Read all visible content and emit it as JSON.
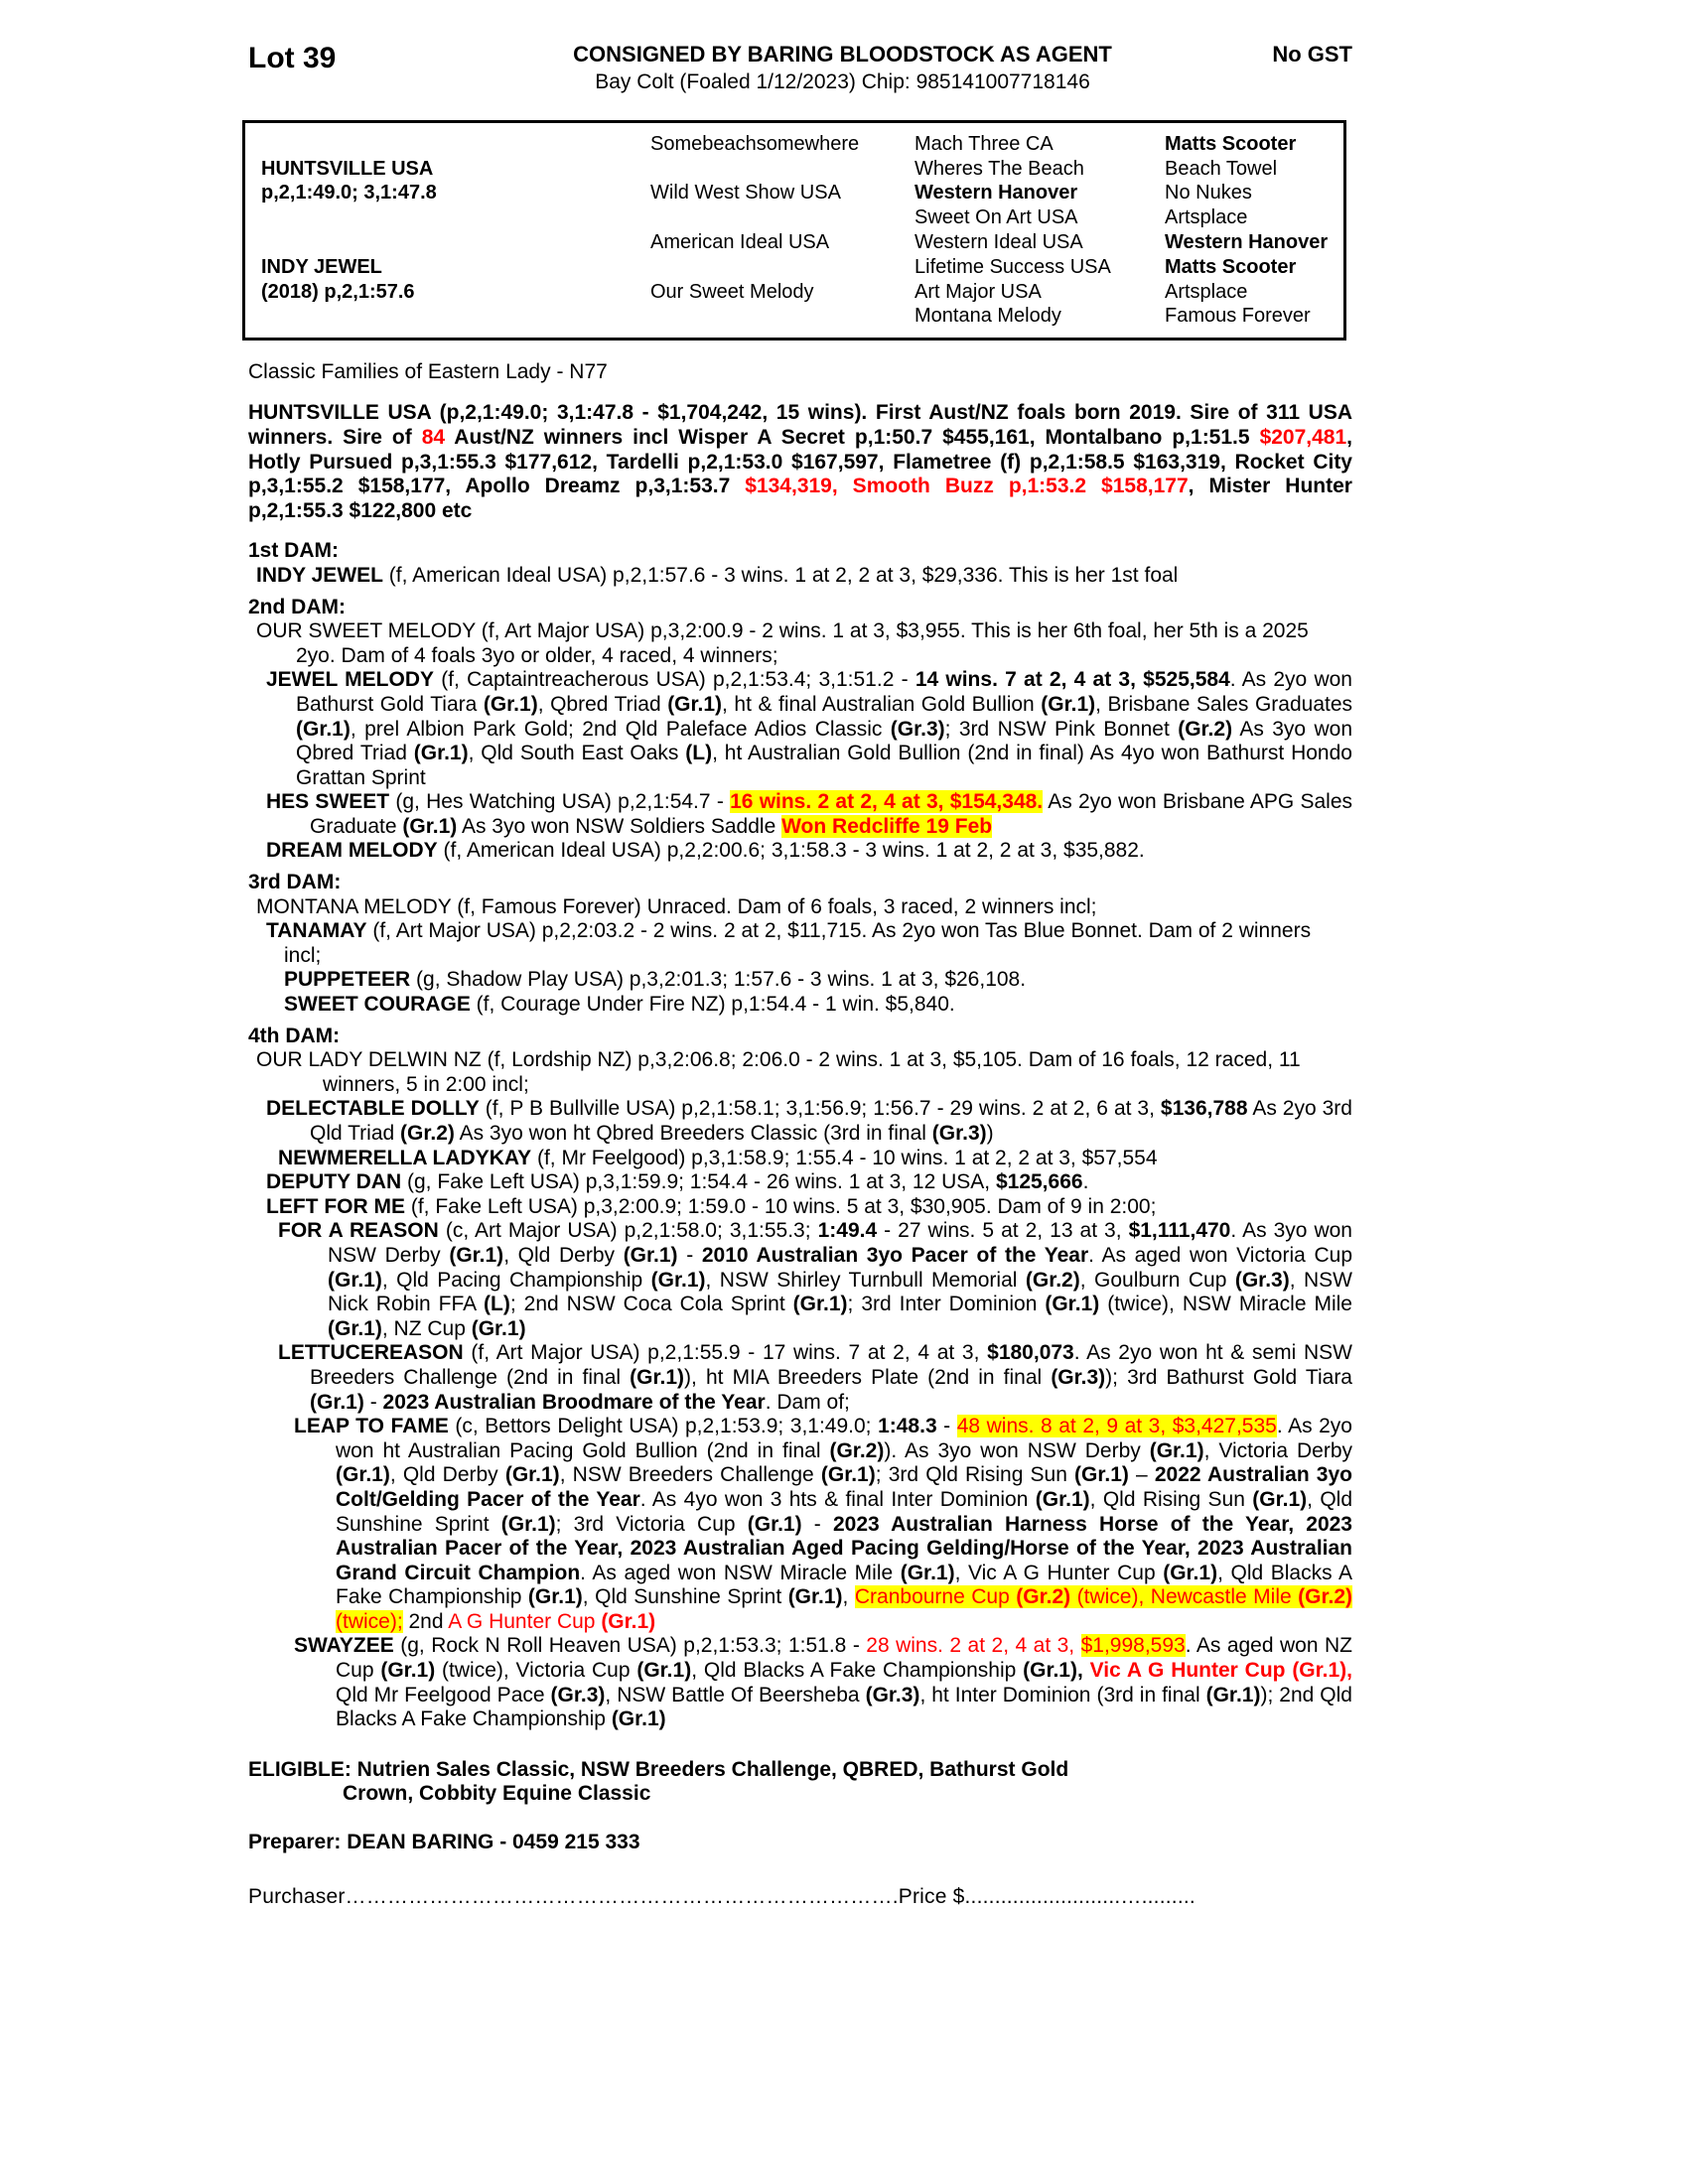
{
  "header": {
    "lot": "Lot 39",
    "consignor": "CONSIGNED BY BARING BLOODSTOCK AS AGENT",
    "gst": "No GST",
    "foaling": "Bay Colt (Foaled 1/12/2023) Chip: 985141007718146"
  },
  "pedigree": {
    "sire": {
      "name": "HUNTSVILLE USA",
      "record": "p,2,1:49.0; 3,1:47.8"
    },
    "dam": {
      "name": "INDY JEWEL",
      "record": "(2018) p,2,1:57.6"
    },
    "gen2": [
      "Somebeachsomewhere",
      "Wild West Show USA",
      "American Ideal USA",
      "Our Sweet Melody"
    ],
    "gen3": [
      {
        "t": "Mach Three CA",
        "b": 0
      },
      {
        "t": "Wheres The Beach",
        "b": 0
      },
      {
        "t": "Western Hanover",
        "b": 1
      },
      {
        "t": "Sweet On Art USA",
        "b": 0
      },
      {
        "t": "Western Ideal USA",
        "b": 0
      },
      {
        "t": "Lifetime Success USA",
        "b": 0
      },
      {
        "t": "Art Major USA",
        "b": 0
      },
      {
        "t": "Montana Melody",
        "b": 0
      }
    ],
    "gen4": [
      {
        "t": "Matts Scooter",
        "b": 1
      },
      {
        "t": "Beach Towel",
        "b": 0
      },
      {
        "t": "No Nukes",
        "b": 0
      },
      {
        "t": "Artsplace",
        "b": 0
      },
      {
        "t": "Western Hanover",
        "b": 1
      },
      {
        "t": "Matts Scooter",
        "b": 1
      },
      {
        "t": "Artsplace",
        "b": 0
      },
      {
        "t": "Famous Forever",
        "b": 0
      }
    ]
  },
  "family_line": "Classic Families of Eastern Lady - N77",
  "colors": {
    "accent_red": "#ff0000",
    "highlight_yellow": "#ffff00"
  },
  "body": [
    {
      "n": "huntsville-summary",
      "cls": "sire-para",
      "f": 0,
      "w": 0,
      "j": 1,
      "sp": [
        [
          "b",
          "HUNTSVILLE USA (p,2,1:49.0; 3,1:47.8 - $1,704,242, 15 wins).  First Aust/NZ foals born 2019. Sire of 311 USA winners. Sire of "
        ],
        [
          "rb",
          "84"
        ],
        [
          "b",
          " Aust/NZ winners incl Wisper A Secret p,1:50.7 $455,161, Montalbano p,1:51.5 "
        ],
        [
          "rb",
          "$207,481"
        ],
        [
          "b",
          ", Hotly Pursued p,3,1:55.3 $177,612, Tardelli p,2,1:53.0 $167,597, Flametree (f) p,2,1:58.5 $163,319, Rocket City p,3,1:55.2 $158,177, Apollo Dreamz p,3,1:53.7 "
        ],
        [
          "rb",
          "$134,319, Smooth Buzz p,1:53.2 $158,177"
        ],
        [
          "b",
          ", Mister Hunter p,2,1:55.3 $122,800 etc"
        ]
      ]
    },
    {
      "n": "first-dam-heading",
      "cls": "heading",
      "f": 0,
      "w": 0,
      "sp": [
        [
          "b",
          "1st DAM:"
        ]
      ]
    },
    {
      "n": "indy-jewel-para",
      "f": 8,
      "w": 40,
      "sp": [
        [
          "b",
          "INDY JEWEL"
        ],
        [
          "n",
          " (f, American Ideal USA) p,2,1:57.6 - 3 wins. 1 at 2, 2 at 3, $29,336. This is her 1st foal"
        ]
      ]
    },
    {
      "n": "second-dam-heading",
      "cls": "heading",
      "f": 0,
      "w": 0,
      "sp": [
        [
          "b",
          "2nd DAM:"
        ]
      ]
    },
    {
      "n": "our-sweet-melody-para",
      "f": 8,
      "w": 48,
      "sp": [
        [
          "n",
          "OUR SWEET MELODY (f, Art Major USA) p,3,2:00.9 - 2 wins. 1 at 3, $3,955. This is her 6th foal, her 5th is a 2025 2yo. Dam of 4 foals 3yo or older, 4 raced, 4 winners;"
        ]
      ]
    },
    {
      "n": "jewel-melody-para",
      "f": 18,
      "w": 48,
      "j": 1,
      "sp": [
        [
          "b",
          "JEWEL MELODY"
        ],
        [
          "n",
          " (f, Captaintreacherous USA) p,2,1:53.4; 3,1:51.2 - "
        ],
        [
          "b",
          "14 wins. 7 at 2, 4 at 3, $525,584"
        ],
        [
          "n",
          ". As 2yo won Bathurst Gold Tiara "
        ],
        [
          "b",
          "(Gr.1)"
        ],
        [
          "n",
          ", Qbred Triad "
        ],
        [
          "b",
          "(Gr.1)"
        ],
        [
          "n",
          ", ht & final Australian Gold Bullion "
        ],
        [
          "b",
          "(Gr.1)"
        ],
        [
          "n",
          ", Brisbane Sales Graduates "
        ],
        [
          "b",
          "(Gr.1)"
        ],
        [
          "n",
          ", prel Albion Park Gold; 2nd Qld Paleface Adios Classic "
        ],
        [
          "b",
          "(Gr.3)"
        ],
        [
          "n",
          "; 3rd NSW Pink Bonnet "
        ],
        [
          "b",
          "(Gr.2)"
        ],
        [
          "n",
          " As 3yo won Qbred Triad "
        ],
        [
          "b",
          "(Gr.1)"
        ],
        [
          "n",
          ", Qld South East Oaks "
        ],
        [
          "b",
          "(L)"
        ],
        [
          "n",
          ", ht Australian Gold Bullion (2nd in final) As 4yo won Bathurst Hondo Grattan Sprint"
        ]
      ]
    },
    {
      "n": "hes-sweet-para",
      "f": 18,
      "w": 62,
      "j": 1,
      "sp": [
        [
          "b",
          "HES SWEET"
        ],
        [
          "n",
          " (g, Hes Watching USA) p,2,1:54.7 - "
        ],
        [
          "yrb",
          "16 wins. 2 at 2, 4 at 3, $154,348."
        ],
        [
          "n",
          " As 2yo won Brisbane APG Sales Graduate "
        ],
        [
          "b",
          "(Gr.1)"
        ],
        [
          "n",
          " As 3yo won NSW Soldiers Saddle "
        ],
        [
          "yrb",
          "Won Redcliffe 19 Feb"
        ]
      ]
    },
    {
      "n": "dream-melody-para",
      "f": 18,
      "w": 48,
      "sp": [
        [
          "b",
          "DREAM MELODY"
        ],
        [
          "n",
          " (f, American Ideal USA) p,2,2:00.6; 3,1:58.3 - 3 wins. 1 at 2, 2 at 3, $35,882."
        ]
      ]
    },
    {
      "n": "third-dam-heading",
      "cls": "heading",
      "f": 0,
      "w": 0,
      "sp": [
        [
          "b",
          "3rd DAM:"
        ]
      ]
    },
    {
      "n": "montana-melody-para",
      "f": 8,
      "w": 40,
      "sp": [
        [
          "n",
          "MONTANA MELODY (f, Famous Forever) Unraced. Dam of 6 foals, 3 raced, 2 winners incl;"
        ]
      ]
    },
    {
      "n": "tanamay-para",
      "f": 18,
      "w": 36,
      "sp": [
        [
          "b",
          "TANAMAY"
        ],
        [
          "n",
          " (f, Art Major USA) p,2,2:03.2 - 2 wins. 2 at 2, $11,715. As 2yo won Tas Blue Bonnet. Dam of 2 winners incl;"
        ]
      ]
    },
    {
      "n": "puppeteer-para",
      "f": 36,
      "w": 60,
      "sp": [
        [
          "b",
          "PUPPETEER"
        ],
        [
          "n",
          " (g, Shadow Play USA) p,3,2:01.3; 1:57.6 - 3 wins. 1 at 3, $26,108."
        ]
      ]
    },
    {
      "n": "sweet-courage-para",
      "f": 36,
      "w": 60,
      "sp": [
        [
          "b",
          "SWEET COURAGE"
        ],
        [
          "n",
          " (f, Courage Under Fire NZ) p,1:54.4 - 1 win. $5,840."
        ]
      ]
    },
    {
      "n": "fourth-dam-heading",
      "cls": "heading",
      "f": 0,
      "w": 0,
      "sp": [
        [
          "b",
          "4th DAM:"
        ]
      ]
    },
    {
      "n": "our-lady-delwin-para",
      "f": 8,
      "w": 75,
      "sp": [
        [
          "n",
          "OUR LADY DELWIN NZ (f, Lordship NZ) p,3,2:06.8; 2:06.0 - 2 wins. 1 at 3, $5,105. Dam of 16 foals, 12 raced, 11 winners, 5 in 2:00 incl;"
        ]
      ]
    },
    {
      "n": "delectable-dolly-para",
      "f": 18,
      "w": 62,
      "j": 1,
      "sp": [
        [
          "b",
          "DELECTABLE DOLLY"
        ],
        [
          "n",
          " (f, P B Bullville USA) p,2,1:58.1; 3,1:56.9; 1:56.7 - 29 wins. 2 at 2, 6 at 3, "
        ],
        [
          "b",
          "$136,788"
        ],
        [
          "n",
          " As 2yo 3rd Qld Triad "
        ],
        [
          "b",
          "(Gr.2)"
        ],
        [
          "n",
          " As 3yo won ht Qbred Breeders Classic (3rd in final "
        ],
        [
          "b",
          "(Gr.3)"
        ],
        [
          "n",
          ")"
        ]
      ]
    },
    {
      "n": "newmerella-ladykay-para",
      "f": 30,
      "w": 62,
      "sp": [
        [
          "b",
          "NEWMERELLA LADYKAY"
        ],
        [
          "n",
          " (f, Mr Feelgood) p,3,1:58.9; 1:55.4 - 10 wins. 1 at 2, 2 at 3, $57,554"
        ]
      ]
    },
    {
      "n": "deputy-dan-para",
      "f": 18,
      "w": 48,
      "sp": [
        [
          "b",
          "DEPUTY DAN"
        ],
        [
          "n",
          " (g, Fake Left USA) p,3,1:59.9; 1:54.4 - 26 wins. 1 at 3, 12 USA, "
        ],
        [
          "b",
          "$125,666"
        ],
        [
          "n",
          "."
        ]
      ]
    },
    {
      "n": "left-for-me-para",
      "f": 18,
      "w": 48,
      "sp": [
        [
          "b",
          "LEFT FOR ME"
        ],
        [
          "n",
          " (f, Fake Left USA) p,3,2:00.9; 1:59.0 - 10 wins. 5 at 3, $30,905. Dam of 9 in 2:00;"
        ]
      ]
    },
    {
      "n": "for-a-reason-para",
      "f": 30,
      "w": 80,
      "j": 1,
      "sp": [
        [
          "b",
          "FOR A REASON"
        ],
        [
          "n",
          " (c, Art Major USA) p,2,1:58.0; 3,1:55.3; "
        ],
        [
          "b",
          "1:49.4"
        ],
        [
          "n",
          " - 27 wins. 5 at 2, 13 at 3, "
        ],
        [
          "b",
          "$1,111,470"
        ],
        [
          "n",
          ". As 3yo won NSW Derby "
        ],
        [
          "b",
          "(Gr.1)"
        ],
        [
          "n",
          ", Qld Derby "
        ],
        [
          "b",
          "(Gr.1)"
        ],
        [
          "n",
          " - "
        ],
        [
          "b",
          "2010 Australian 3yo Pacer of the Year"
        ],
        [
          "n",
          ". As aged won Victoria Cup "
        ],
        [
          "b",
          "(Gr.1)"
        ],
        [
          "n",
          ", Qld Pacing Championship "
        ],
        [
          "b",
          "(Gr.1)"
        ],
        [
          "n",
          ", NSW Shirley Turnbull Memorial "
        ],
        [
          "b",
          "(Gr.2)"
        ],
        [
          "n",
          ", Goulburn Cup "
        ],
        [
          "b",
          "(Gr.3)"
        ],
        [
          "n",
          ", NSW Nick Robin FFA "
        ],
        [
          "b",
          "(L)"
        ],
        [
          "n",
          "; 2nd NSW Coca Cola Sprint "
        ],
        [
          "b",
          "(Gr.1)"
        ],
        [
          "n",
          "; 3rd Inter Dominion "
        ],
        [
          "b",
          "(Gr.1)"
        ],
        [
          "n",
          " (twice), NSW Miracle Mile "
        ],
        [
          "b",
          "(Gr.1)"
        ],
        [
          "n",
          ", NZ Cup "
        ],
        [
          "b",
          "(Gr.1)"
        ]
      ]
    },
    {
      "n": "lettucereason-para",
      "f": 30,
      "w": 62,
      "j": 1,
      "sp": [
        [
          "b",
          "LETTUCEREASON"
        ],
        [
          "n",
          " (f, Art Major USA) p,2,1:55.9 - 17 wins. 7 at 2, 4 at 3, "
        ],
        [
          "b",
          "$180,073"
        ],
        [
          "n",
          ". As 2yo won ht & semi NSW Breeders Challenge (2nd in final "
        ],
        [
          "b",
          "(Gr.1)"
        ],
        [
          "n",
          "), ht MIA Breeders Plate (2nd in final "
        ],
        [
          "b",
          "(Gr.3)"
        ],
        [
          "n",
          "); 3rd Bathurst Gold Tiara "
        ],
        [
          "b",
          "(Gr.1)"
        ],
        [
          "n",
          " - "
        ],
        [
          "b",
          "2023 Australian Broodmare of the Year"
        ],
        [
          "n",
          ". Dam of;"
        ]
      ]
    },
    {
      "n": "leap-to-fame-para",
      "f": 46,
      "w": 88,
      "j": 1,
      "sp": [
        [
          "b",
          "LEAP TO FAME"
        ],
        [
          "n",
          " (c, Bettors Delight USA) p,2,1:53.9; 3,1:49.0; "
        ],
        [
          "b",
          "1:48.3"
        ],
        [
          "n",
          " - "
        ],
        [
          "yr",
          "48 wins. 8 at 2, 9 at 3, $3,427,535"
        ],
        [
          "n",
          ". As 2yo won ht Australian Pacing Gold Bullion (2nd in final "
        ],
        [
          "b",
          "(Gr.2)"
        ],
        [
          "n",
          "). As 3yo won NSW Derby "
        ],
        [
          "b",
          "(Gr.1)"
        ],
        [
          "n",
          ", Victoria Derby "
        ],
        [
          "b",
          "(Gr.1)"
        ],
        [
          "n",
          ", Qld Derby "
        ],
        [
          "b",
          "(Gr.1)"
        ],
        [
          "n",
          ", NSW Breeders Challenge "
        ],
        [
          "b",
          "(Gr.1)"
        ],
        [
          "n",
          "; 3rd Qld Rising Sun "
        ],
        [
          "b",
          "(Gr.1)"
        ],
        [
          "n",
          " – "
        ],
        [
          "b",
          "2022 Australian 3yo Colt/Gelding Pacer of the Year"
        ],
        [
          "n",
          ". As 4yo won 3 hts & final Inter Dominion "
        ],
        [
          "b",
          "(Gr.1)"
        ],
        [
          "n",
          ", Qld Rising Sun "
        ],
        [
          "b",
          "(Gr.1)"
        ],
        [
          "n",
          ", Qld Sunshine Sprint "
        ],
        [
          "b",
          "(Gr.1)"
        ],
        [
          "n",
          "; 3rd Victoria Cup "
        ],
        [
          "b",
          "(Gr.1)"
        ],
        [
          "n",
          " - "
        ],
        [
          "b",
          "2023 Australian Harness Horse of the Year, 2023 Australian Pacer of the Year, 2023 Australian Aged Pacing Gelding/Horse of the Year, 2023 Australian Grand Circuit Champion"
        ],
        [
          "n",
          ". As aged won NSW Miracle Mile "
        ],
        [
          "b",
          "(Gr.1)"
        ],
        [
          "n",
          ", Vic A G Hunter Cup "
        ],
        [
          "b",
          "(Gr.1)"
        ],
        [
          "n",
          ", Qld Blacks A Fake Championship "
        ],
        [
          "b",
          "(Gr.1)"
        ],
        [
          "n",
          ", Qld Sunshine Sprint "
        ],
        [
          "b",
          "(Gr.1)"
        ],
        [
          "n",
          ", "
        ],
        [
          "yr",
          "Cranbourne Cup "
        ],
        [
          "yrb",
          "(Gr.2)"
        ],
        [
          "yr",
          " (twice), Newcastle Mile "
        ],
        [
          "yrb",
          "(Gr.2)"
        ],
        [
          "yr",
          " (twice);"
        ],
        [
          "n",
          " 2nd "
        ],
        [
          "r",
          "A G Hunter Cup "
        ],
        [
          "rb",
          "(Gr.1)"
        ]
      ]
    },
    {
      "n": "swayzee-para",
      "f": 46,
      "w": 88,
      "j": 1,
      "sp": [
        [
          "b",
          "SWAYZEE"
        ],
        [
          "n",
          " (g, Rock N Roll Heaven USA) p,2,1:53.3; 1:51.8 - "
        ],
        [
          "r",
          "28 wins. 2 at 2, 4 at 3, "
        ],
        [
          "yr",
          "$1,998,593"
        ],
        [
          "n",
          ". As aged won NZ Cup "
        ],
        [
          "b",
          "(Gr.1)"
        ],
        [
          "n",
          " (twice), Victoria Cup "
        ],
        [
          "b",
          "(Gr.1)"
        ],
        [
          "n",
          ", Qld Blacks A Fake Championship "
        ],
        [
          "b",
          "(Gr.1),"
        ],
        [
          "n",
          " "
        ],
        [
          "rb",
          "Vic A G Hunter Cup (Gr.1),"
        ],
        [
          "n",
          " Qld Mr Feelgood Pace "
        ],
        [
          "b",
          "(Gr.3)"
        ],
        [
          "n",
          ", NSW Battle Of Beersheba "
        ],
        [
          "b",
          "(Gr.3)"
        ],
        [
          "n",
          ", ht Inter Dominion (3rd in final "
        ],
        [
          "b",
          "(Gr.1)"
        ],
        [
          "n",
          "); 2nd Qld Blacks A Fake Championship "
        ],
        [
          "b",
          "(Gr.1)"
        ]
      ]
    },
    {
      "n": "eligible-line",
      "cls": "eligible",
      "f": 0,
      "w": 95,
      "sp": [
        [
          "b",
          "ELIGIBLE: Nutrien Sales Classic, NSW Breeders Challenge, QBRED, Bathurst Gold"
        ],
        [
          "b",
          "Crown, Cobbity Equine Classic",
          1
        ]
      ]
    },
    {
      "n": "preparer-line",
      "cls": "preparer",
      "f": 0,
      "w": 0,
      "sp": [
        [
          "b",
          "Preparer: DEAN BARING - 0459 215 333"
        ]
      ]
    },
    {
      "n": "purchaser-line",
      "cls": "purchline",
      "f": 0,
      "w": 0,
      "sp": [
        [
          "n",
          "Purchaser……………………………………………………………………."
        ],
        [
          "n",
          "Price $"
        ],
        [
          "n",
          "..........................…........."
        ]
      ]
    }
  ]
}
